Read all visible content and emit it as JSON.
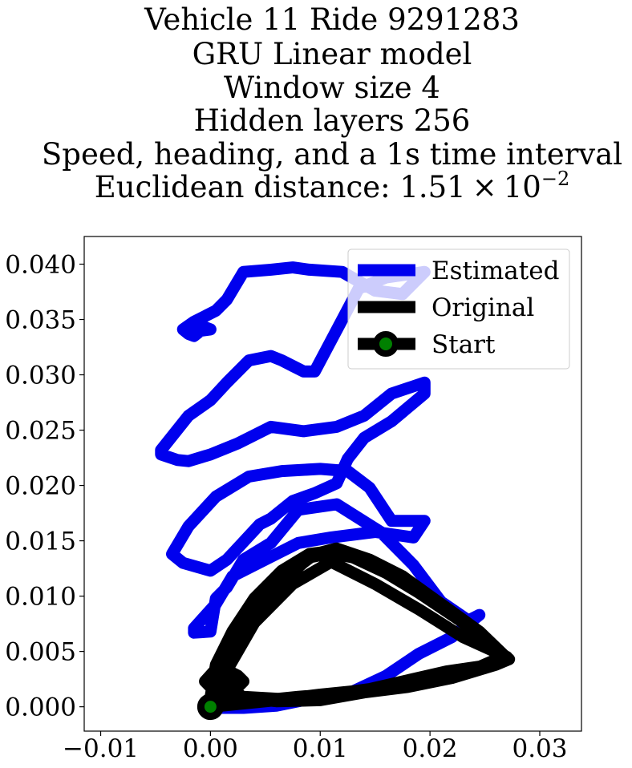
{
  "chart_data": {
    "type": "line",
    "title_lines": [
      "Vehicle 11 Ride 9291283",
      "GRU Linear model",
      "Window size 4",
      "Hidden layers 256",
      "Speed, heading, and a 1s time interval"
    ],
    "title_metric_prefix": "Euclidean distance: 1.51",
    "title_metric_times": "×",
    "title_metric_base": "10",
    "title_metric_exponent": "−2",
    "xlim": [
      -0.0115,
      0.0338
    ],
    "ylim": [
      -0.0022,
      0.0425
    ],
    "x_ticks": [
      -0.01,
      0.0,
      0.01,
      0.02,
      0.03
    ],
    "x_tick_labels": [
      "−0.01",
      "0.00",
      "0.01",
      "0.02",
      "0.03"
    ],
    "y_ticks": [
      0.0,
      0.005,
      0.01,
      0.015,
      0.02,
      0.025,
      0.03,
      0.035,
      0.04
    ],
    "y_tick_labels": [
      "0.000",
      "0.005",
      "0.010",
      "0.015",
      "0.020",
      "0.025",
      "0.030",
      "0.035",
      "0.040"
    ],
    "grid": false,
    "legend_position": "upper right",
    "legend": [
      "Estimated",
      "Original",
      "Start"
    ],
    "series": [
      {
        "name": "Estimated",
        "color": "#0000ee",
        "x": [
          0.0,
          0.003,
          0.006,
          0.009,
          0.013,
          0.016,
          0.019,
          0.022,
          0.0245,
          0.0235,
          0.021,
          0.0185,
          0.0155,
          0.0115,
          0.008,
          0.0055,
          0.003,
          0.0015,
          0.0005,
          0.0,
          -0.0015,
          -0.0015,
          0.0005,
          0.002,
          0.005,
          0.008,
          0.011,
          0.015,
          0.0185,
          0.0195,
          0.0165,
          0.0145,
          0.0125,
          0.01,
          0.0065,
          0.0035,
          0.0005,
          -0.002,
          -0.0035,
          -0.0025,
          0.0,
          0.0015,
          0.003,
          0.0045,
          0.0055,
          0.0075,
          0.0095,
          0.0115,
          0.0125,
          0.014,
          0.0165,
          0.0195,
          0.0195,
          0.0165,
          0.014,
          0.0115,
          0.0085,
          0.0055,
          0.0025,
          0.0,
          -0.002,
          -0.003,
          -0.0045,
          -0.0045,
          -0.002,
          0.0,
          0.0015,
          0.0035,
          0.0055,
          0.0065,
          0.0075,
          0.0085,
          0.0095,
          0.0135,
          0.016,
          0.0195,
          0.0175,
          0.015,
          0.012,
          0.009,
          0.0075,
          0.0055,
          0.003,
          0.0015,
          0.0005,
          -0.0005,
          -0.0015,
          -0.0025,
          -0.002,
          -0.0015,
          -0.0005,
          0.0,
          -0.0015,
          -0.0022,
          -0.0015,
          -0.0005
        ],
        "y": [
          -0.0001,
          -0.0001,
          0.0001,
          0.0007,
          0.0014,
          0.0028,
          0.0048,
          0.0063,
          0.0083,
          0.0078,
          0.0095,
          0.0128,
          0.0158,
          0.0183,
          0.0178,
          0.0148,
          0.0133,
          0.0108,
          0.0098,
          0.0068,
          0.0067,
          0.0071,
          0.0093,
          0.0118,
          0.0133,
          0.0148,
          0.0153,
          0.0158,
          0.0153,
          0.0168,
          0.0168,
          0.0198,
          0.0213,
          0.0215,
          0.0213,
          0.0208,
          0.019,
          0.0163,
          0.0138,
          0.013,
          0.0123,
          0.0133,
          0.0149,
          0.0165,
          0.017,
          0.0186,
          0.0193,
          0.0202,
          0.0224,
          0.0243,
          0.0258,
          0.0283,
          0.0293,
          0.0283,
          0.0263,
          0.0253,
          0.0249,
          0.0253,
          0.0238,
          0.0228,
          0.0222,
          0.0223,
          0.0228,
          0.0232,
          0.0263,
          0.0277,
          0.0293,
          0.0313,
          0.0317,
          0.0313,
          0.0308,
          0.0303,
          0.0303,
          0.0378,
          0.0388,
          0.0393,
          0.0373,
          0.0376,
          0.0393,
          0.0395,
          0.0397,
          0.0395,
          0.0393,
          0.0368,
          0.0358,
          0.0353,
          0.0348,
          0.0341,
          0.0337,
          0.0335,
          0.0343,
          0.0341,
          0.0339,
          0.034,
          0.0344,
          0.0342
        ]
      },
      {
        "name": "Original",
        "color": "#000000",
        "x": [
          0.0,
          0.002,
          0.006,
          0.01,
          0.014,
          0.018,
          0.022,
          0.025,
          0.027,
          0.025,
          0.022,
          0.019,
          0.016,
          0.013,
          0.0105,
          0.009,
          0.0065,
          0.004,
          0.002,
          0.0005,
          0.0,
          0.0015,
          0.004,
          0.008,
          0.012,
          0.016,
          0.02,
          0.024,
          0.0268,
          0.0245,
          0.021,
          0.0175,
          0.0145,
          0.0115,
          0.0095,
          0.0075,
          0.0055,
          0.0035,
          0.002,
          0.0015,
          0.0025,
          0.003,
          0.0025,
          0.0015,
          0.003,
          0.006,
          0.01,
          0.014,
          0.018,
          0.022,
          0.026,
          0.0272,
          0.024,
          0.0205,
          0.0175,
          0.014,
          0.011,
          0.009,
          0.0065,
          0.004,
          0.0015,
          -0.0005,
          0.0005,
          0.003,
          0.0065,
          0.0095,
          0.0115,
          0.0145,
          0.018,
          0.0215,
          0.025,
          0.027,
          0.023,
          0.019,
          0.015,
          0.011,
          0.0075,
          0.004,
          0.0015,
          0.0
        ],
        "y": [
          0.0,
          0.0002,
          0.0006,
          0.0011,
          0.0015,
          0.0021,
          0.0028,
          0.0035,
          0.0043,
          0.0063,
          0.0083,
          0.0103,
          0.0121,
          0.0135,
          0.014,
          0.0138,
          0.0123,
          0.0098,
          0.0068,
          0.0038,
          0.0008,
          0.0003,
          0.0005,
          0.0009,
          0.0012,
          0.0018,
          0.0026,
          0.0034,
          0.0046,
          0.0068,
          0.0093,
          0.0118,
          0.0133,
          0.0143,
          0.0138,
          0.0123,
          0.0103,
          0.0073,
          0.0048,
          0.0033,
          0.0028,
          0.0023,
          0.0018,
          0.0021,
          0.0008,
          0.0005,
          0.0006,
          0.0013,
          0.0018,
          0.0026,
          0.0038,
          0.0043,
          0.0068,
          0.0096,
          0.0118,
          0.0133,
          0.0139,
          0.0135,
          0.0113,
          0.0083,
          0.0045,
          0.0023,
          0.0013,
          0.0009,
          0.0007,
          0.0009,
          0.0012,
          0.0016,
          0.0024,
          0.0032,
          0.0037,
          0.0045,
          0.0063,
          0.0088,
          0.0111,
          0.0131,
          0.0111,
          0.0076,
          0.0033,
          0.0003
        ]
      }
    ],
    "start_point": {
      "name": "Start",
      "x": 0.0,
      "y": 0.0,
      "marker_color": "#008000",
      "edge_color": "#000000"
    }
  }
}
